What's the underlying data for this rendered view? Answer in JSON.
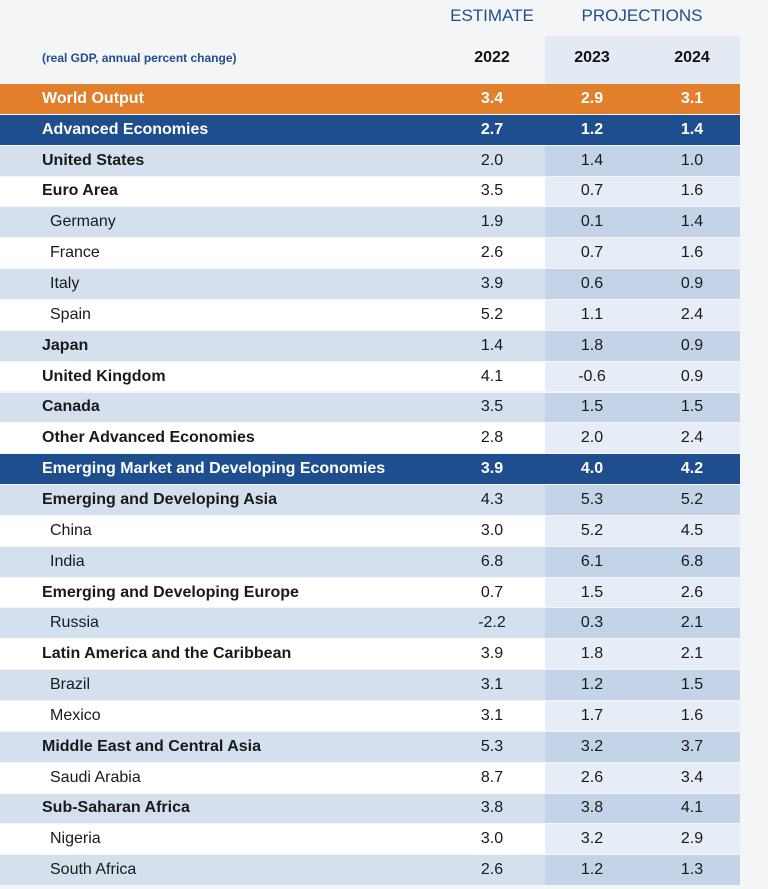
{
  "header": {
    "columns": [
      {
        "label": "ESTIMATE"
      },
      {
        "label": "PROJECTIONS"
      }
    ],
    "unit_note": "(real GDP, annual percent change)",
    "years": [
      "2022",
      "2023",
      "2024"
    ]
  },
  "table": {
    "rows": [
      {
        "label": "World Output",
        "values": [
          "3.4",
          "2.9",
          "3.1"
        ]
      },
      {
        "label": "Advanced Economies",
        "values": [
          "2.7",
          "1.2",
          "1.4"
        ]
      },
      {
        "label": "United States",
        "values": [
          "2.0",
          "1.4",
          "1.0"
        ]
      },
      {
        "label": "Euro Area",
        "values": [
          "3.5",
          "0.7",
          "1.6"
        ]
      },
      {
        "label": "Germany",
        "values": [
          "1.9",
          "0.1",
          "1.4"
        ]
      },
      {
        "label": "France",
        "values": [
          "2.6",
          "0.7",
          "1.6"
        ]
      },
      {
        "label": "Italy",
        "values": [
          "3.9",
          "0.6",
          "0.9"
        ]
      },
      {
        "label": "Spain",
        "values": [
          "5.2",
          "1.1",
          "2.4"
        ]
      },
      {
        "label": "Japan",
        "values": [
          "1.4",
          "1.8",
          "0.9"
        ]
      },
      {
        "label": "United Kingdom",
        "values": [
          "4.1",
          "-0.6",
          "0.9"
        ]
      },
      {
        "label": "Canada",
        "values": [
          "3.5",
          "1.5",
          "1.5"
        ]
      },
      {
        "label": "Other Advanced Economies",
        "values": [
          "2.8",
          "2.0",
          "2.4"
        ]
      },
      {
        "label": "Emerging Market and Developing Economies",
        "values": [
          "3.9",
          "4.0",
          "4.2"
        ]
      },
      {
        "label": "Emerging and Developing Asia",
        "values": [
          "4.3",
          "5.3",
          "5.2"
        ]
      },
      {
        "label": "China",
        "values": [
          "3.0",
          "5.2",
          "4.5"
        ]
      },
      {
        "label": "India",
        "values": [
          "6.8",
          "6.1",
          "6.8"
        ]
      },
      {
        "label": "Emerging and Developing Europe",
        "values": [
          "0.7",
          "1.5",
          "2.6"
        ]
      },
      {
        "label": "Russia",
        "values": [
          "-2.2",
          "0.3",
          "2.1"
        ]
      },
      {
        "label": "Latin America and the Caribbean",
        "values": [
          "3.9",
          "1.8",
          "2.1"
        ]
      },
      {
        "label": "Brazil",
        "values": [
          "3.1",
          "1.2",
          "1.5"
        ]
      },
      {
        "label": "Mexico",
        "values": [
          "3.1",
          "1.7",
          "1.6"
        ]
      },
      {
        "label": "Middle East and Central Asia",
        "values": [
          "5.3",
          "3.2",
          "3.7"
        ]
      },
      {
        "label": "Saudi Arabia",
        "values": [
          "8.7",
          "2.6",
          "3.4"
        ]
      },
      {
        "label": "Sub-Saharan Africa",
        "values": [
          "3.8",
          "3.8",
          "4.1"
        ]
      },
      {
        "label": "Nigeria",
        "values": [
          "3.0",
          "3.2",
          "2.9"
        ]
      },
      {
        "label": "South Africa",
        "values": [
          "2.6",
          "1.2",
          "1.3"
        ]
      }
    ]
  }
}
